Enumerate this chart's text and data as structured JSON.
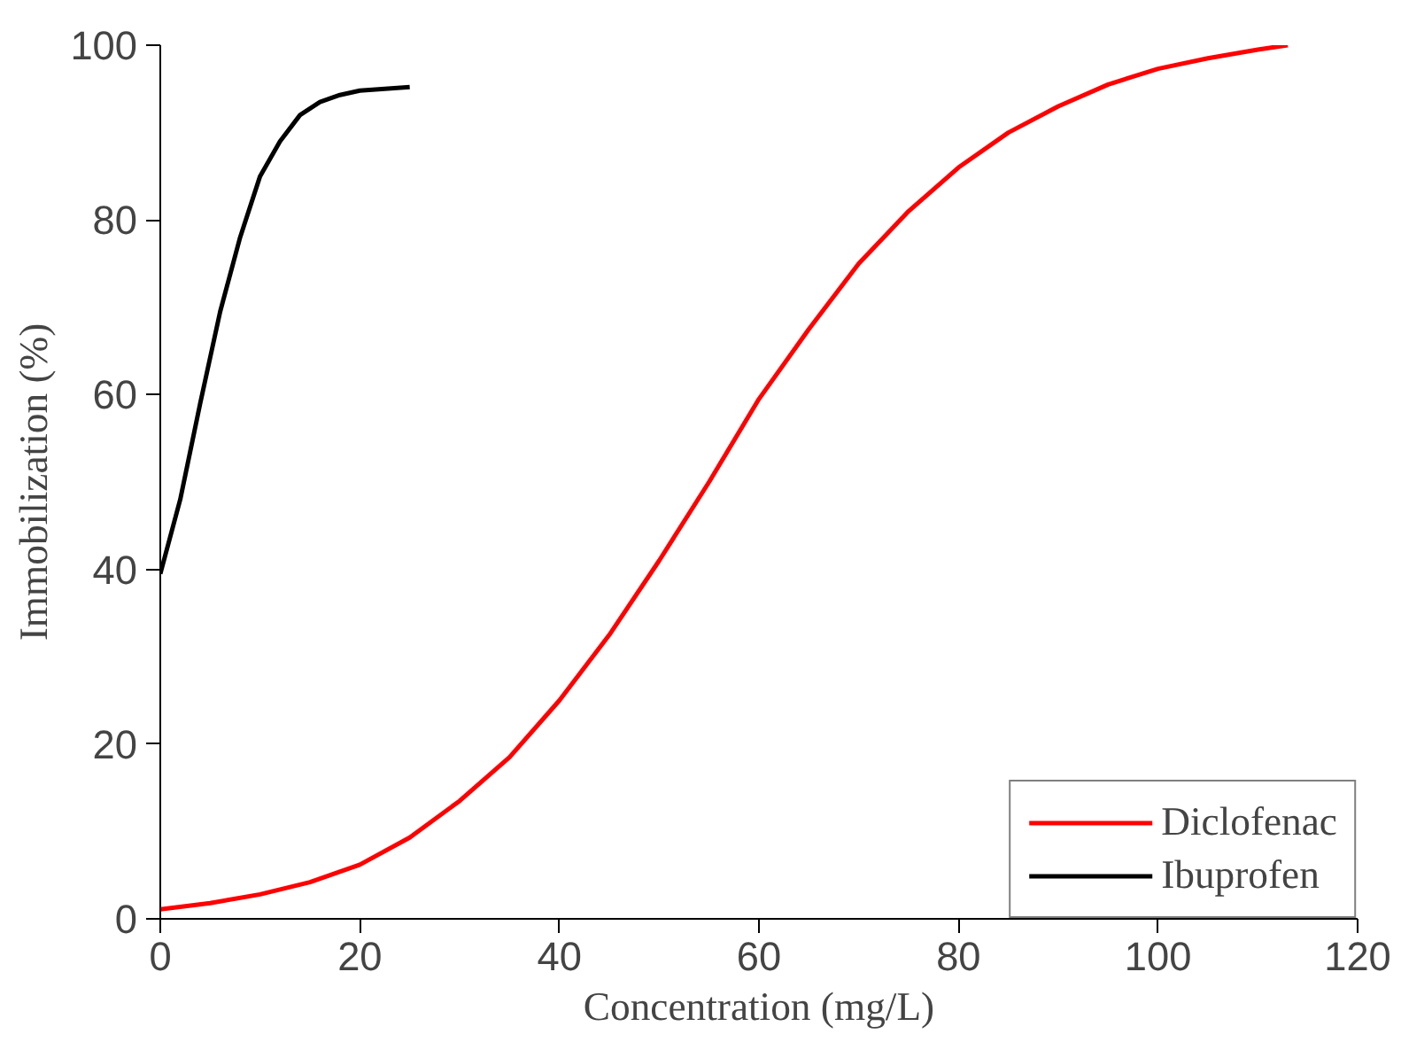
{
  "chart_data": {
    "type": "line",
    "xlabel": "Concentration (mg/L)",
    "ylabel": "Immobilization (%)",
    "xlim": [
      0,
      120
    ],
    "ylim": [
      0,
      100
    ],
    "xticks": [
      0,
      20,
      40,
      60,
      80,
      100,
      120
    ],
    "yticks": [
      0,
      20,
      40,
      60,
      80,
      100
    ],
    "grid": false,
    "legend": "bottom right",
    "marker": "none",
    "line_style": "solid",
    "series": [
      {
        "name": "Diclofenac",
        "color": "#ff0000",
        "x": [
          0,
          5,
          10,
          15,
          20,
          25,
          30,
          35,
          40,
          45,
          50,
          55,
          60,
          65,
          70,
          75,
          80,
          85,
          90,
          95,
          100,
          105,
          110,
          113
        ],
        "values": [
          1.1,
          1.8,
          2.8,
          4.2,
          6.2,
          9.3,
          13.5,
          18.5,
          25,
          32.5,
          41,
          50,
          59.5,
          67.5,
          75,
          81,
          86,
          90,
          93,
          95.5,
          97.3,
          98.5,
          99.5,
          100
        ]
      },
      {
        "name": "Ibuprofen",
        "color": "#000000",
        "x": [
          0,
          2,
          4,
          6,
          8,
          10,
          12,
          14,
          16,
          18,
          20,
          25
        ],
        "values": [
          39.5,
          48,
          59,
          69.5,
          78,
          85,
          89,
          92,
          93.5,
          94.3,
          94.8,
          95.2
        ]
      }
    ]
  }
}
